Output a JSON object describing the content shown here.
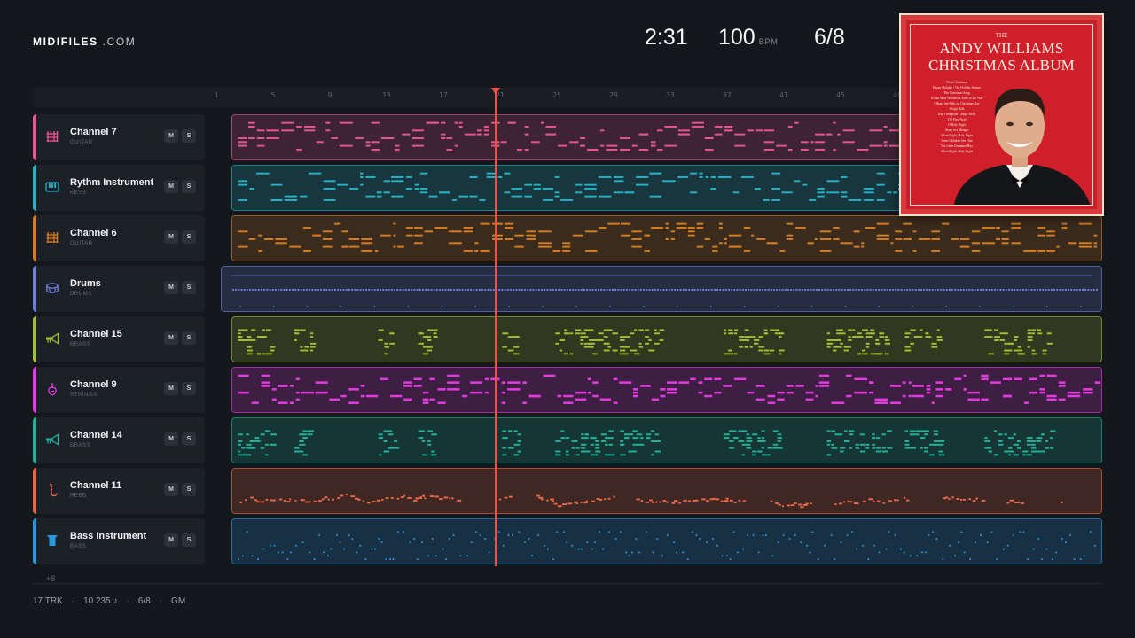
{
  "brand": {
    "name": "MIDIFILES",
    "tld": ".COM"
  },
  "transport": {
    "time": "2:31",
    "tempo": "100",
    "tempo_unit": "BPM",
    "time_signature": "6/8"
  },
  "ruler": {
    "ticks": [
      "1",
      "5",
      "9",
      "13",
      "17",
      "21",
      "25",
      "29",
      "33",
      "37",
      "41",
      "45",
      "49"
    ]
  },
  "tracks": [
    {
      "name": "Channel 7",
      "category": "GUITAR",
      "icon": "guitar-icon",
      "color": "#e8578e",
      "mute": "M",
      "solo": "S",
      "pattern": "dense-guitar"
    },
    {
      "name": "Rythm Instrument",
      "category": "KEYS",
      "icon": "keys-icon",
      "color": "#24b2c6",
      "mute": "M",
      "solo": "S",
      "pattern": "dense-keys"
    },
    {
      "name": "Channel 6",
      "category": "GUITAR",
      "icon": "guitar-icon",
      "color": "#d87c1f",
      "mute": "M",
      "solo": "S",
      "pattern": "dense-guitar"
    },
    {
      "name": "Drums",
      "category": "DRUMS",
      "icon": "drum-icon",
      "color": "#6f80d8",
      "mute": "M",
      "solo": "S",
      "pattern": "drums"
    },
    {
      "name": "Channel 15",
      "category": "BRASS",
      "icon": "trumpet-icon",
      "color": "#a4c030",
      "mute": "M",
      "solo": "S",
      "pattern": "sparse-clusters"
    },
    {
      "name": "Channel 9",
      "category": "STRINGS",
      "icon": "violin-icon",
      "color": "#e43be0",
      "mute": "M",
      "solo": "S",
      "pattern": "dense-strings"
    },
    {
      "name": "Channel 14",
      "category": "BRASS",
      "icon": "trumpet-icon",
      "color": "#1fb39a",
      "mute": "M",
      "solo": "S",
      "pattern": "sparse-clusters"
    },
    {
      "name": "Channel 11",
      "category": "REED",
      "icon": "saxophone-icon",
      "color": "#ea6848",
      "mute": "M",
      "solo": "S",
      "pattern": "melody"
    },
    {
      "name": "Bass Instrument",
      "category": "BASS",
      "icon": "bass-icon",
      "color": "#2a98e0",
      "mute": "M",
      "solo": "S",
      "pattern": "bass"
    }
  ],
  "more_tracks": "+8",
  "footer": {
    "tracks": "17 TRK",
    "notes": "10 235 ♪",
    "meter": "6/8",
    "standard": "GM"
  },
  "album": {
    "line1": "THE",
    "artist": "ANDY WILLIAMS",
    "title": "CHRISTMAS ALBUM",
    "songs": [
      "White Christmas",
      "Happy Holiday / The Holiday Season",
      "The Christmas Song",
      "It's the Most Wonderful Time of the Year",
      "I Heard the Bells on Christmas Day",
      "Sleigh Ride",
      "Kay Thompson's Jingle Bells",
      "The First Noel",
      "O Holy Night",
      "Away in a Manger",
      "Silent Night, Holy Night",
      "Some Children See Him",
      "The Little Drummer Boy",
      "Silent Night, Holy Night"
    ]
  }
}
